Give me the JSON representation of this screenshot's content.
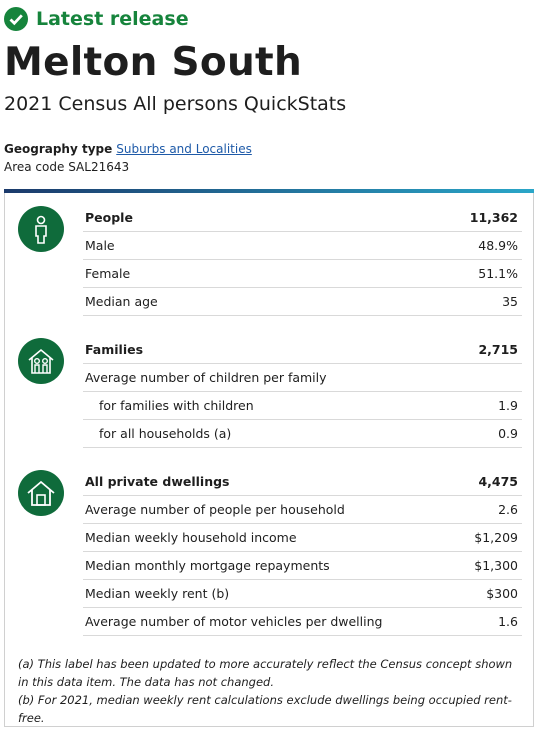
{
  "header": {
    "badge": "Latest release",
    "title": "Melton South",
    "subtitle": "2021 Census All persons QuickStats"
  },
  "geography": {
    "type_label": "Geography type",
    "type_value": "Suburbs and Localities",
    "area_label": "Area code",
    "area_value": "SAL21643"
  },
  "sections": [
    {
      "rows": [
        {
          "label": "People",
          "value": "11,362"
        },
        {
          "label": "Male",
          "value": "48.9%"
        },
        {
          "label": "Female",
          "value": "51.1%"
        },
        {
          "label": "Median age",
          "value": "35"
        }
      ]
    },
    {
      "rows": [
        {
          "label": "Families",
          "value": "2,715"
        },
        {
          "label": "Average number of children per family"
        },
        {
          "label": "for families with children",
          "value": "1.9"
        },
        {
          "label": "for all households (a)",
          "value": "0.9"
        }
      ]
    },
    {
      "rows": [
        {
          "label": "All private dwellings",
          "value": "4,475"
        },
        {
          "label": "Average number of people per household",
          "value": "2.6"
        },
        {
          "label": "Median weekly household income",
          "value": "$1,209"
        },
        {
          "label": "Median monthly mortgage repayments",
          "value": "$1,300"
        },
        {
          "label": "Median weekly rent (b)",
          "value": "$300"
        },
        {
          "label": "Average number of motor vehicles per dwelling",
          "value": "1.6"
        }
      ]
    }
  ],
  "footnotes": [
    "(a) This label has been updated to more accurately reflect the Census concept shown in this data item. The data has not changed.",
    "(b) For 2021, median weekly rent calculations exclude dwellings being occupied rent-free."
  ]
}
